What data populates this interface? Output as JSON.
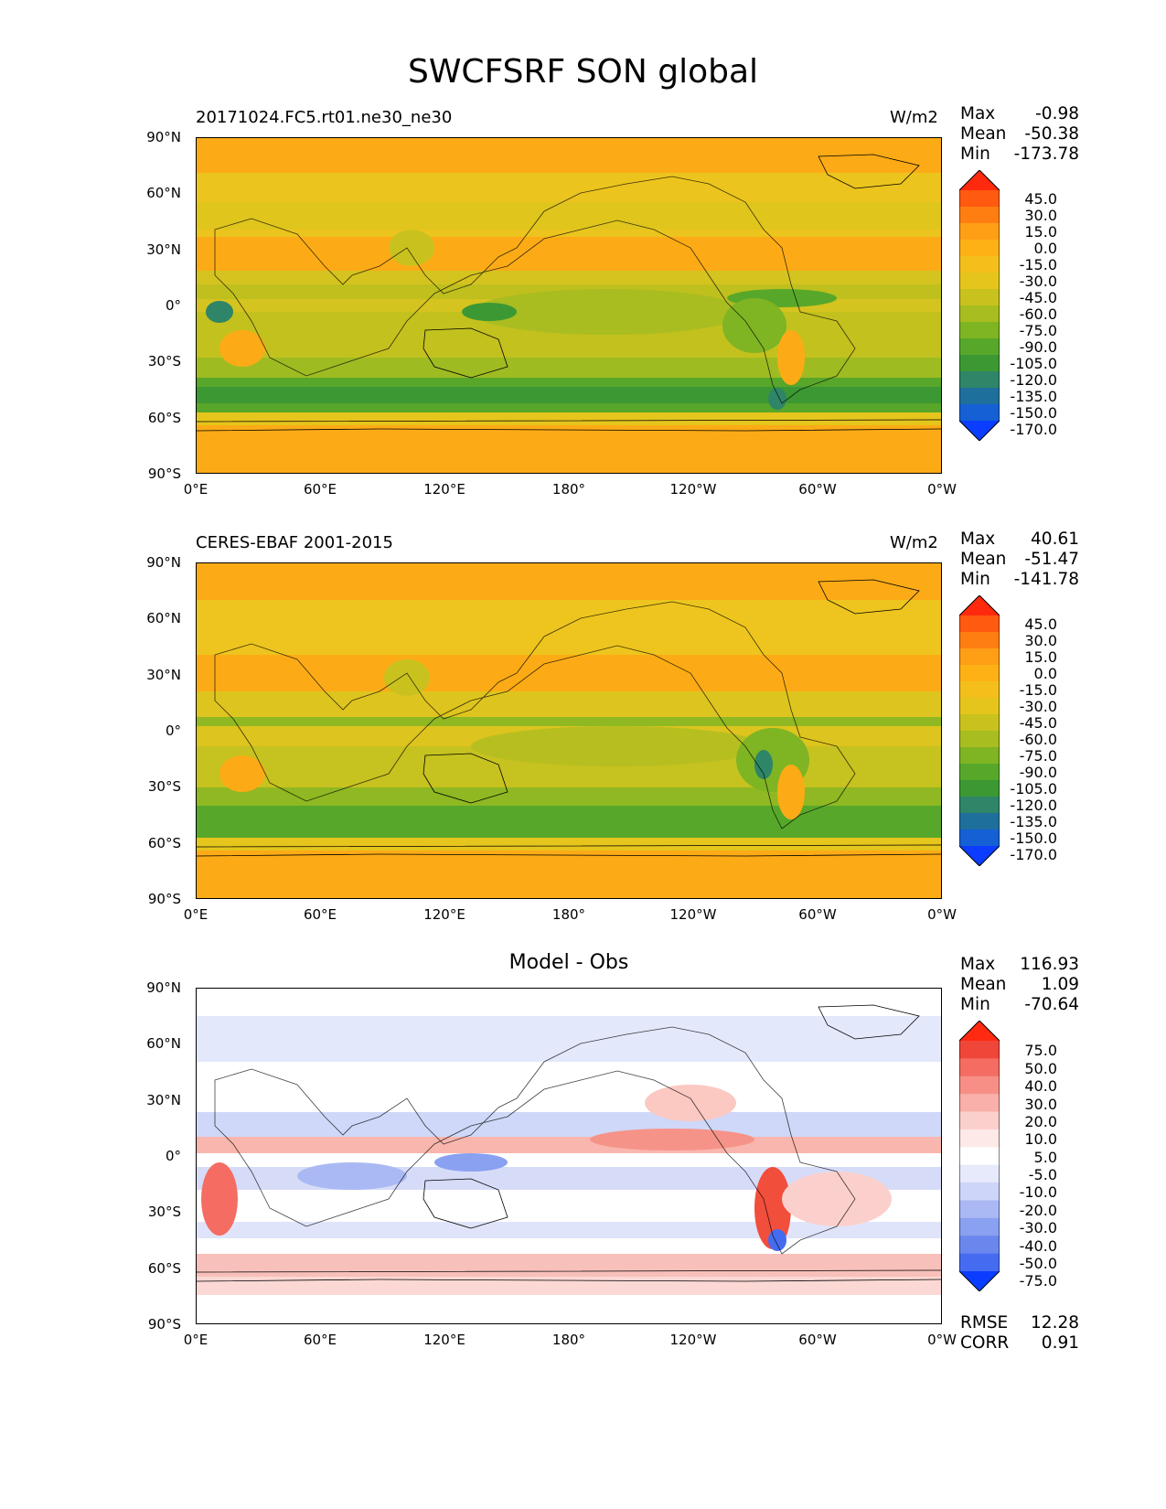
{
  "figure": {
    "title": "SWCFSRF SON global"
  },
  "axes": {
    "lat_ticks": [
      "90°N",
      "60°N",
      "30°N",
      "0°",
      "30°S",
      "60°S",
      "90°S"
    ],
    "lon_ticks": [
      "0°E",
      "60°E",
      "120°E",
      "180°",
      "120°W",
      "60°W",
      "0°W"
    ]
  },
  "panels": [
    {
      "id": "test",
      "case_label": "20171024.FC5.rt01.ne30_ne30",
      "units": "W/m2",
      "center_title": "",
      "stats": [
        {
          "label": "Max",
          "value": "-0.98"
        },
        {
          "label": "Mean",
          "value": "-50.38"
        },
        {
          "label": "Min",
          "value": "-173.78"
        }
      ],
      "colorbar": {
        "levels": [
          "45.0",
          "30.0",
          "15.0",
          "0.0",
          "-15.0",
          "-30.0",
          "-45.0",
          "-60.0",
          "-75.0",
          "-90.0",
          "-105.0",
          "-120.0",
          "-135.0",
          "-150.0",
          "-170.0"
        ],
        "colors": [
          "#ff2a0e",
          "#ff5a10",
          "#ff7e12",
          "#ff9f16",
          "#fdb114",
          "#f4bf1a",
          "#e5c51c",
          "#c9c21e",
          "#a8bd1f",
          "#7fb423",
          "#57a82a",
          "#3c9833",
          "#2e8567",
          "#1f6f9c",
          "#1460d4",
          "#0a3dff"
        ]
      }
    },
    {
      "id": "ref",
      "case_label": "CERES-EBAF 2001-2015",
      "units": "W/m2",
      "center_title": "",
      "stats": [
        {
          "label": "Max",
          "value": "40.61"
        },
        {
          "label": "Mean",
          "value": "-51.47"
        },
        {
          "label": "Min",
          "value": "-141.78"
        }
      ],
      "colorbar": {
        "levels": [
          "45.0",
          "30.0",
          "15.0",
          "0.0",
          "-15.0",
          "-30.0",
          "-45.0",
          "-60.0",
          "-75.0",
          "-90.0",
          "-105.0",
          "-120.0",
          "-135.0",
          "-150.0",
          "-170.0"
        ],
        "colors": [
          "#ff2a0e",
          "#ff5a10",
          "#ff7e12",
          "#ff9f16",
          "#fdb114",
          "#f4bf1a",
          "#e5c51c",
          "#c9c21e",
          "#a8bd1f",
          "#7fb423",
          "#57a82a",
          "#3c9833",
          "#2e8567",
          "#1f6f9c",
          "#1460d4",
          "#0a3dff"
        ]
      }
    },
    {
      "id": "diff",
      "case_label": "",
      "units": "",
      "center_title": "Model - Obs",
      "stats": [
        {
          "label": "Max",
          "value": "116.93"
        },
        {
          "label": "Mean",
          "value": "1.09"
        },
        {
          "label": "Min",
          "value": "-70.64"
        }
      ],
      "comparison": [
        {
          "label": "RMSE",
          "value": "12.28"
        },
        {
          "label": "CORR",
          "value": "0.91"
        }
      ],
      "colorbar": {
        "levels": [
          "75.0",
          "50.0",
          "40.0",
          "30.0",
          "20.0",
          "10.0",
          "5.0",
          "-5.0",
          "-10.0",
          "-20.0",
          "-30.0",
          "-40.0",
          "-50.0",
          "-75.0"
        ],
        "colors": [
          "#ff2a10",
          "#f0463a",
          "#f46c62",
          "#f78f86",
          "#f9b0aa",
          "#fbd0cc",
          "#fde9e7",
          "#ffffff",
          "#e6eafb",
          "#cdd5f8",
          "#aab9f3",
          "#8aa0f0",
          "#6a87ee",
          "#456cf0",
          "#0a3dff"
        ]
      }
    }
  ]
}
